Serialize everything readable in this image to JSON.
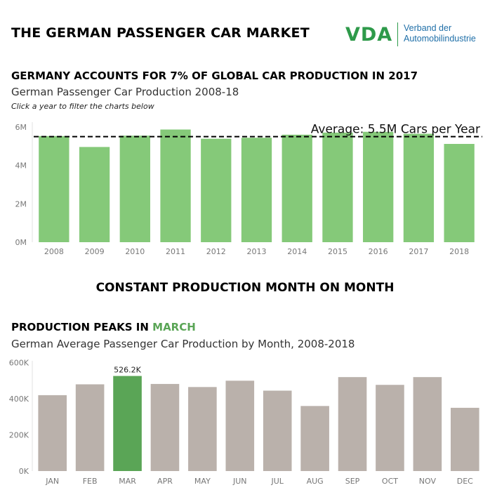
{
  "page": {
    "title": "THE GERMAN PASSENGER CAR MARKET",
    "logo": {
      "mark": "VDA",
      "line1": "Verband der",
      "line2": "Automobilindustrie",
      "color": "#2e9a4a",
      "text_color": "#1f6fa8"
    }
  },
  "section1": {
    "heading": "GERMANY ACCOUNTS FOR 7% OF GLOBAL CAR PRODUCTION IN 2017",
    "subtitle": "German Passenger Car Production 2008-18",
    "instruction": "Click a year to filter the charts below"
  },
  "section_heading": "CONSTANT PRODUCTION MONTH ON MONTH",
  "section2": {
    "heading_prefix": "PRODUCTION PEAKS IN ",
    "heading_highlight": "MARCH",
    "subtitle": "German Average Passenger Car Production by Month, 2008-2018"
  },
  "chart_data": [
    {
      "type": "bar",
      "categories": [
        "2008",
        "2009",
        "2010",
        "2011",
        "2012",
        "2013",
        "2014",
        "2015",
        "2016",
        "2017",
        "2018"
      ],
      "values": [
        5.53,
        4.96,
        5.55,
        5.87,
        5.39,
        5.44,
        5.6,
        5.71,
        5.75,
        5.65,
        5.12
      ],
      "unit": "M",
      "ylim": [
        0,
        6.4
      ],
      "yticks": [
        0,
        2,
        4,
        6
      ],
      "ytick_labels": [
        "0M",
        "2M",
        "4M",
        "6M"
      ],
      "reference_line": {
        "value": 5.5,
        "label": "Average: 5.5M Cars per Year",
        "style": "dashed"
      },
      "bar_color": "#85c979",
      "grid": false
    },
    {
      "type": "bar",
      "categories": [
        "JAN",
        "FEB",
        "MAR",
        "APR",
        "MAY",
        "JUN",
        "JUL",
        "AUG",
        "SEP",
        "OCT",
        "NOV",
        "DEC"
      ],
      "values": [
        420,
        480,
        526.2,
        482,
        465,
        500,
        445,
        360,
        520,
        477,
        520,
        350
      ],
      "unit": "K",
      "ylim": [
        0,
        610
      ],
      "yticks": [
        0,
        200,
        400,
        600
      ],
      "ytick_labels": [
        "0K",
        "200K",
        "400K",
        "600K"
      ],
      "highlight": {
        "category": "MAR",
        "label": "526.2K",
        "color": "#5aa556"
      },
      "bar_color": "#bab1ab",
      "grid": false
    }
  ]
}
